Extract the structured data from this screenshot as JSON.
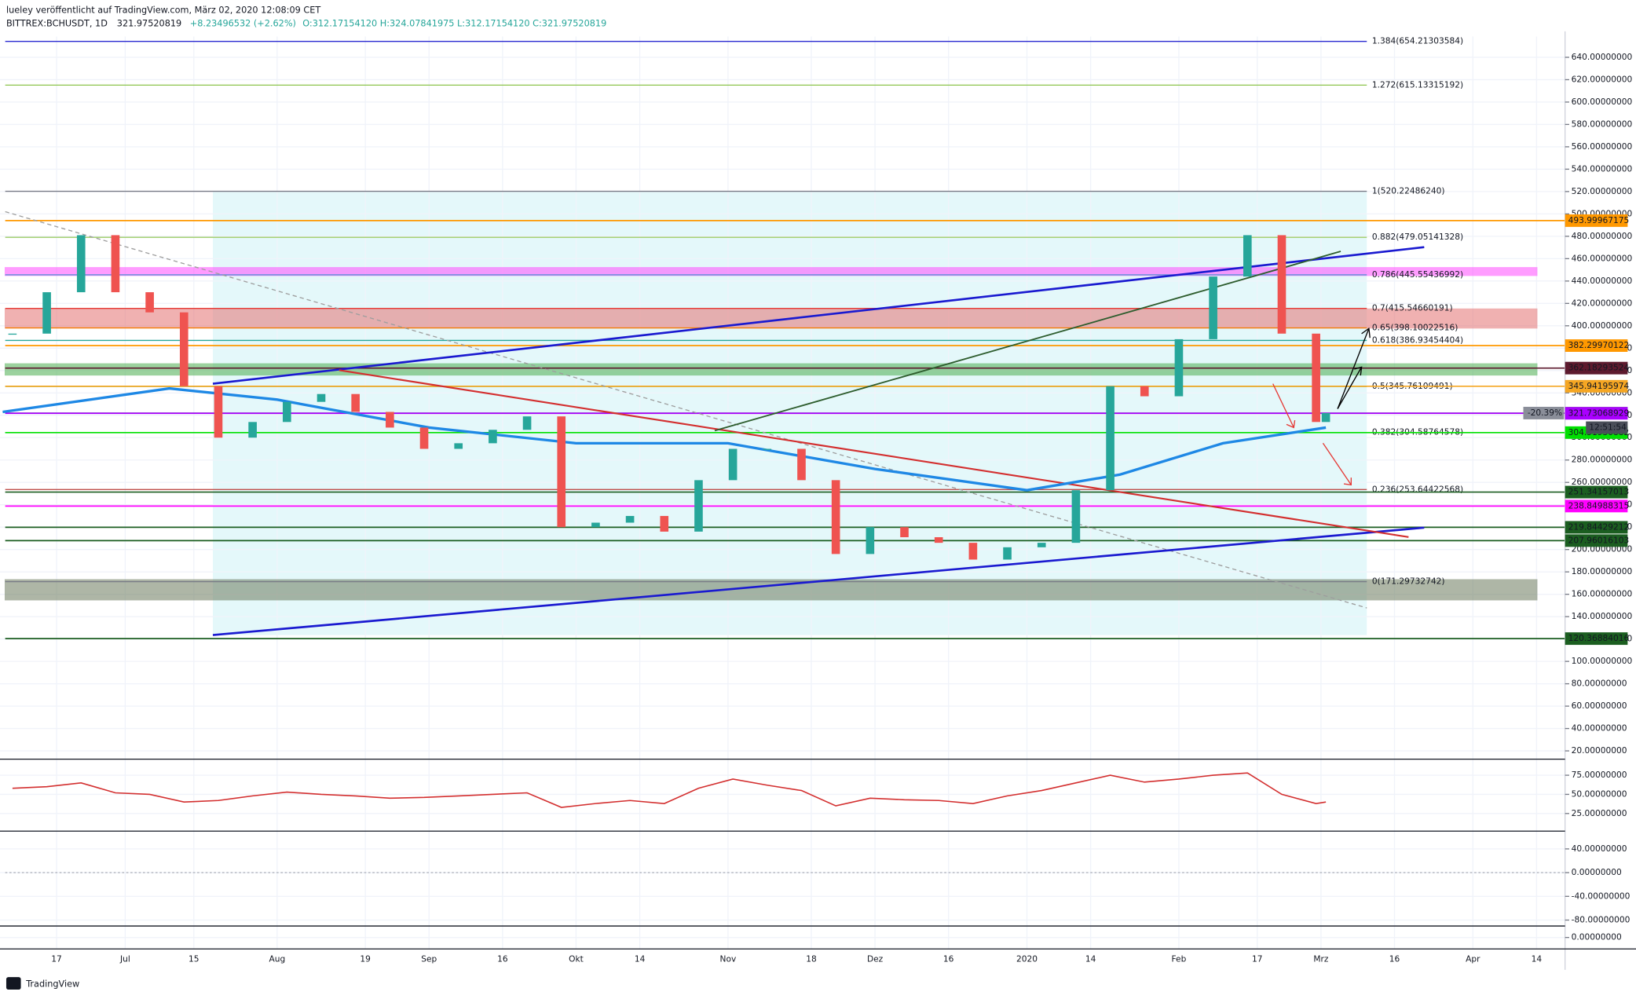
{
  "header": {
    "publisher": "lueley veröffentlicht auf TradingView.com, März 02, 2020 12:08:09 CET",
    "symbol": "BITTREX:BCHUSDT, 1D",
    "last": "321.97520819",
    "change": "+8.23496532 (+2.62%)",
    "ohlc": "O:312.17154120 H:324.07841975 L:312.17154120 C:321.97520819"
  },
  "footer": {
    "brand": "TradingView"
  },
  "chart_data": [
    {
      "type": "candlestick",
      "up_color": "#26a69a",
      "down_color": "#ef5350",
      "x": [
        "2019-06-08",
        "2019-06-15",
        "2019-06-22",
        "2019-06-29",
        "2019-07-06",
        "2019-07-13",
        "2019-07-20",
        "2019-07-27",
        "2019-08-03",
        "2019-08-10",
        "2019-08-17",
        "2019-08-24",
        "2019-08-31",
        "2019-09-07",
        "2019-09-14",
        "2019-09-21",
        "2019-09-28",
        "2019-10-05",
        "2019-10-12",
        "2019-10-19",
        "2019-10-26",
        "2019-11-02",
        "2019-11-09",
        "2019-11-16",
        "2019-11-23",
        "2019-11-30",
        "2019-12-07",
        "2019-12-14",
        "2019-12-21",
        "2019-12-28",
        "2020-01-04",
        "2020-01-11",
        "2020-01-18",
        "2020-01-25",
        "2020-02-01",
        "2020-02-08",
        "2020-02-15",
        "2020-02-22",
        "2020-02-29",
        "2020-03-02"
      ],
      "values": [
        393,
        430,
        481,
        430,
        412,
        346,
        300,
        314,
        332,
        339,
        323,
        309,
        290,
        295,
        307,
        319,
        220,
        224,
        230,
        216,
        262,
        290,
        290,
        262,
        196,
        220,
        211,
        206,
        191,
        202,
        206,
        253,
        346,
        337,
        388,
        444,
        481,
        393,
        314,
        321.97520819
      ],
      "ma_color": "#1e88e5",
      "ma_x": [
        "2019-06-06",
        "2019-07-10",
        "2019-08-01",
        "2019-09-01",
        "2019-10-01",
        "2019-11-01",
        "2019-12-01",
        "2020-01-01",
        "2020-01-20",
        "2020-02-10",
        "2020-03-02"
      ],
      "ma_values": [
        323,
        344,
        334,
        309,
        295,
        295,
        272,
        253,
        267,
        295,
        309
      ],
      "ylim": [
        12.6,
        658.6
      ],
      "yticks": [
        {
          "value": 20,
          "label": "20.00000000"
        },
        {
          "value": 40,
          "label": "40.00000000"
        },
        {
          "value": 60,
          "label": "60.00000000"
        },
        {
          "value": 80,
          "label": "80.00000000"
        },
        {
          "value": 100,
          "label": "100.00000000"
        },
        {
          "value": 120,
          "label": "120.00000000"
        },
        {
          "value": 140,
          "label": "140.00000000"
        },
        {
          "value": 160,
          "label": "160.00000000"
        },
        {
          "value": 180,
          "label": "180.00000000"
        },
        {
          "value": 200,
          "label": "200.00000000"
        },
        {
          "value": 220,
          "label": "220.00000000"
        },
        {
          "value": 240,
          "label": "240.00000000"
        },
        {
          "value": 260,
          "label": "260.00000000"
        },
        {
          "value": 280,
          "label": "280.00000000"
        },
        {
          "value": 300,
          "label": "300.00000000"
        },
        {
          "value": 320,
          "label": "320.00000000"
        },
        {
          "value": 340,
          "label": "340.00000000"
        },
        {
          "value": 360,
          "label": "360.00000000"
        },
        {
          "value": 380,
          "label": "380.00000000"
        },
        {
          "value": 400,
          "label": "400.00000000"
        },
        {
          "value": 420,
          "label": "420.00000000"
        },
        {
          "value": 440,
          "label": "440.00000000"
        },
        {
          "value": 460,
          "label": "460.00000000"
        },
        {
          "value": 480,
          "label": "480.00000000"
        },
        {
          "value": 500,
          "label": "500.00000000"
        },
        {
          "value": 520,
          "label": "520.00000000"
        },
        {
          "value": 540,
          "label": "540.00000000"
        },
        {
          "value": 560,
          "label": "560.00000000"
        },
        {
          "value": 580,
          "label": "580.00000000"
        },
        {
          "value": 600,
          "label": "600.00000000"
        },
        {
          "value": 620,
          "label": "620.00000000"
        },
        {
          "value": 640,
          "label": "640.00000000"
        }
      ],
      "xticks": [
        {
          "value": "2019-06-17",
          "label": "17"
        },
        {
          "value": "2019-07-01",
          "label": "Jul"
        },
        {
          "value": "2019-07-15",
          "label": "15"
        },
        {
          "value": "2019-08-01",
          "label": "Aug"
        },
        {
          "value": "2019-08-19",
          "label": "19"
        },
        {
          "value": "2019-09-01",
          "label": "Sep"
        },
        {
          "value": "2019-09-16",
          "label": "16"
        },
        {
          "value": "2019-10-01",
          "label": "Okt"
        },
        {
          "value": "2019-10-14",
          "label": "14"
        },
        {
          "value": "2019-11-01",
          "label": "Nov"
        },
        {
          "value": "2019-11-18",
          "label": "18"
        },
        {
          "value": "2019-12-01",
          "label": "Dez"
        },
        {
          "value": "2019-12-16",
          "label": "16"
        },
        {
          "value": "2020-01-01",
          "label": "2020"
        },
        {
          "value": "2020-01-14",
          "label": "14"
        },
        {
          "value": "2020-02-01",
          "label": "Feb"
        },
        {
          "value": "2020-02-17",
          "label": "17"
        },
        {
          "value": "2020-03-01",
          "label": "Mrz"
        },
        {
          "value": "2020-03-16",
          "label": "16"
        },
        {
          "value": "2020-04-01",
          "label": "Apr"
        },
        {
          "value": "2020-04-14",
          "label": "14"
        }
      ],
      "levels": [
        {
          "value": 654.21303584,
          "label": "1.384(654.21303584)",
          "color": "#2a2ad0"
        },
        {
          "value": 615.13315192,
          "label": "1.272(615.13315192)",
          "color": "#8bc34a"
        },
        {
          "value": 520.2248624,
          "label": "1(520.22486240)",
          "color": "#787b86"
        },
        {
          "value": 479.05141328,
          "label": "0.882(479.05141328)",
          "color": "#9ccc65"
        },
        {
          "value": 445.55436992,
          "label": "0.786(445.55436992)",
          "color": "#5c8fd6"
        },
        {
          "value": 415.54660191,
          "label": "0.7(415.54660191)",
          "color": "#e53935"
        },
        {
          "value": 398.10022516,
          "label": "0.65(398.10022516)",
          "color": "#f57c00"
        },
        {
          "value": 386.93454404,
          "label": "0.618(386.93454404)",
          "color": "#26a69a"
        },
        {
          "value": 345.76109491,
          "label": "0.5(345.76109491)",
          "color": "#7cb342"
        },
        {
          "value": 304.58764578,
          "label": "0.382(304.58764578)",
          "color": "#43a047"
        },
        {
          "value": 253.64422568,
          "label": "0.236(253.64422568)",
          "color": "#c0504d"
        },
        {
          "value": 171.29732742,
          "label": "0(171.29732742)",
          "color": "#787b86"
        }
      ],
      "zones": [
        {
          "range": [
            445,
            452
          ],
          "color": "#ff4dff"
        },
        {
          "range": [
            398,
            415
          ],
          "color": "#e57373"
        },
        {
          "range": [
            356,
            366
          ],
          "color": "#4caf50"
        },
        {
          "range": [
            155,
            173
          ],
          "color": "#6d7c5e"
        }
      ],
      "price_tags": [
        {
          "value": 493.99967175,
          "color": "#ff9800"
        },
        {
          "value": 382.29970122,
          "color": "#ff9800"
        },
        {
          "value": 362.18293524,
          "color": "#5d1a2e"
        },
        {
          "value": 345.94195974,
          "color": "#f5a623"
        },
        {
          "value": 321.97520819,
          "color": "#8a8e99"
        },
        {
          "value": 321.73068929,
          "color": "#aa00ff"
        },
        {
          "value": 304.51930882,
          "color": "#00e000"
        },
        {
          "value": 251.34157013,
          "color": "#1b5e20"
        },
        {
          "value": 238.84988315,
          "color": "#ff00ff"
        },
        {
          "value": 219.84429212,
          "color": "#1b5e20"
        },
        {
          "value": 207.96016103,
          "color": "#1b5e20"
        },
        {
          "value": 120.36884016,
          "color": "#1b5e20"
        }
      ],
      "change_label": "-20.39%",
      "countdown": "12:51:54"
    },
    {
      "type": "line",
      "color": "#d32f2f",
      "values": [
        58,
        60,
        65,
        52,
        50,
        40,
        42,
        48,
        53,
        50,
        48,
        45,
        46,
        48,
        50,
        52,
        33,
        38,
        42,
        38,
        58,
        70,
        62,
        55,
        35,
        45,
        43,
        42,
        38,
        48,
        55,
        65,
        75,
        66,
        70,
        75,
        78,
        50,
        38,
        40
      ],
      "ylim": [
        2,
        96
      ],
      "yticks": [
        {
          "value": 25,
          "label": "25.00000000"
        },
        {
          "value": 50,
          "label": "50.00000000"
        },
        {
          "value": 75,
          "label": "75.00000000"
        }
      ]
    },
    {
      "type": "macd",
      "ylim": [
        -90,
        70
      ],
      "yticks": [
        {
          "value": 40,
          "label": "40.00000000"
        },
        {
          "value": 0,
          "label": "0.00000000"
        },
        {
          "value": -40,
          "label": "-40.00000000"
        },
        {
          "value": -80,
          "label": "-80.00000000"
        }
      ]
    },
    {
      "type": "pane",
      "ylim": [
        -1,
        1
      ],
      "yticks": [
        {
          "value": 0,
          "label": "0.00000000"
        }
      ]
    }
  ]
}
